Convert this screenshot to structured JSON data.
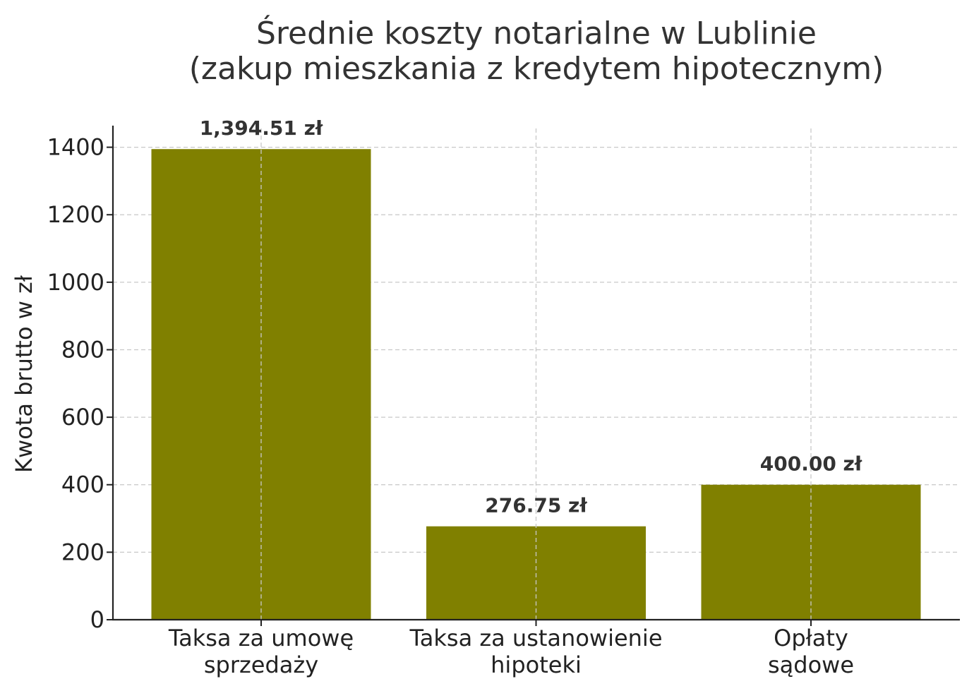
{
  "chart_data": {
    "type": "bar",
    "title_lines": [
      "Średnie koszty notarialne w Lublinie",
      "(zakup mieszkania z kredytem hipotecznym)"
    ],
    "xlabel": "",
    "ylabel": "Kwota brutto w zł",
    "categories": [
      [
        "Taksa za umowę",
        "sprzedaży"
      ],
      [
        "Taksa za ustanowienie",
        "hipoteki"
      ],
      [
        "Opłaty",
        "sądowe"
      ]
    ],
    "values": [
      1394.51,
      276.75,
      400.0
    ],
    "value_labels": [
      "1,394.51 zł",
      "276.75 zł",
      "400.00 zł"
    ],
    "yticks": [
      0,
      200,
      400,
      600,
      800,
      1000,
      1200,
      1400
    ],
    "ylim": [
      0,
      1464
    ],
    "grid": true,
    "legend": "none",
    "bar_color": "#808000"
  }
}
